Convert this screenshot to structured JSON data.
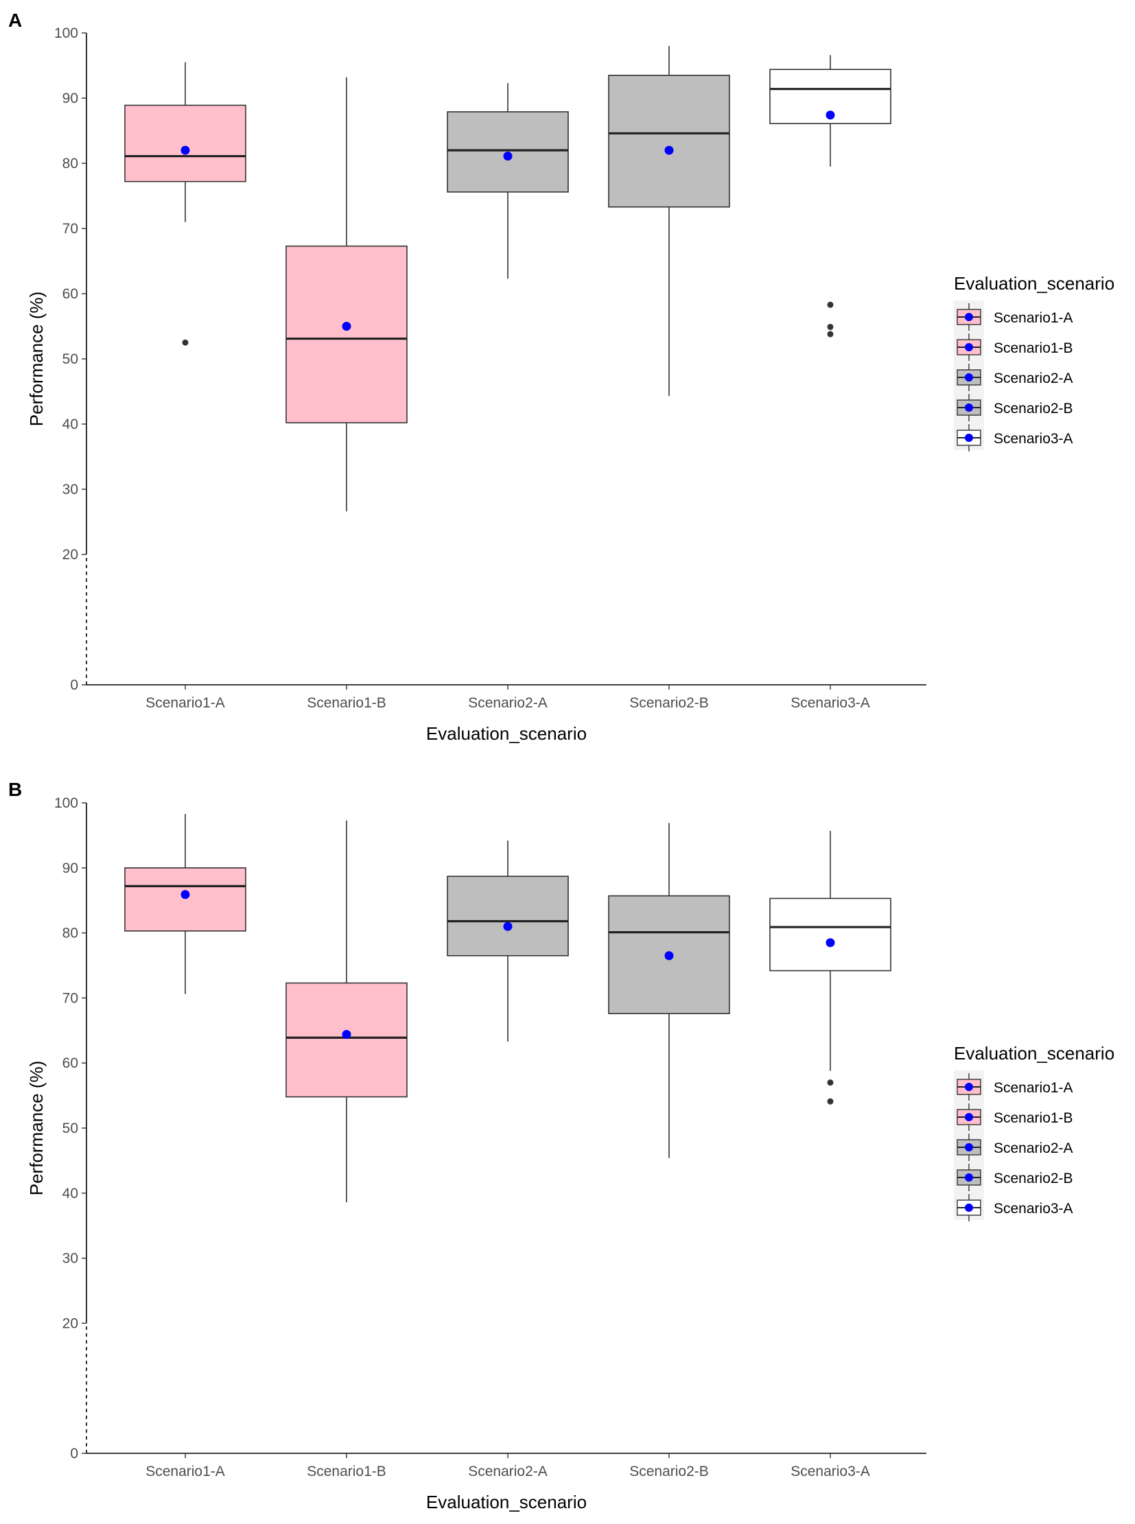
{
  "figure": {
    "panel_labels": [
      "A",
      "B"
    ]
  },
  "chart_data": [
    {
      "panel": "A",
      "type": "boxplot",
      "xlabel": "Evaluation_scenario",
      "ylabel": "Performance (%)",
      "ylim": [
        0,
        100
      ],
      "yticks": [
        0,
        20,
        30,
        40,
        50,
        60,
        70,
        80,
        90,
        100
      ],
      "ytick_labels": [
        "0",
        "20",
        "30",
        "40",
        "50",
        "60",
        "70",
        "80",
        "90",
        "100"
      ],
      "axis_break": "0-20 dashed",
      "legend": {
        "title": "Evaluation_scenario",
        "position": "right",
        "entries": [
          "Scenario1-A",
          "Scenario1-B",
          "Scenario2-A",
          "Scenario2-B",
          "Scenario3-A"
        ]
      },
      "categories": [
        "Scenario1-A",
        "Scenario1-B",
        "Scenario2-A",
        "Scenario2-B",
        "Scenario3-A"
      ],
      "colors": {
        "Scenario1-A": "#ffc0cb",
        "Scenario1-B": "#ffc0cb",
        "Scenario2-A": "#bebebe",
        "Scenario2-B": "#bebebe",
        "Scenario3-A": "#ffffff"
      },
      "mean_color": "#0000ff",
      "boxes": [
        {
          "category": "Scenario1-A",
          "whisker_low": 71,
          "q1": 77.2,
          "median": 81.1,
          "q3": 88.9,
          "whisker_high": 95.5,
          "mean": 82,
          "outliers": [
            52.5
          ]
        },
        {
          "category": "Scenario1-B",
          "whisker_low": 26.6,
          "q1": 40.2,
          "median": 53.1,
          "q3": 67.3,
          "whisker_high": 93.2,
          "mean": 55,
          "outliers": []
        },
        {
          "category": "Scenario2-A",
          "whisker_low": 62.3,
          "q1": 75.6,
          "median": 82,
          "q3": 87.9,
          "whisker_high": 92.3,
          "mean": 81.1,
          "outliers": []
        },
        {
          "category": "Scenario2-B",
          "whisker_low": 44.3,
          "q1": 73.3,
          "median": 84.6,
          "q3": 93.5,
          "whisker_high": 98,
          "mean": 82,
          "outliers": []
        },
        {
          "category": "Scenario3-A",
          "whisker_low": 79.5,
          "q1": 86.1,
          "median": 91.4,
          "q3": 94.4,
          "whisker_high": 96.6,
          "mean": 87.4,
          "outliers": [
            58.3,
            54.9,
            53.8
          ]
        }
      ]
    },
    {
      "panel": "B",
      "type": "boxplot",
      "xlabel": "Evaluation_scenario",
      "ylabel": "Performance (%)",
      "ylim": [
        0,
        100
      ],
      "yticks": [
        0,
        20,
        30,
        40,
        50,
        60,
        70,
        80,
        90,
        100
      ],
      "ytick_labels": [
        "0",
        "20",
        "30",
        "40",
        "50",
        "60",
        "70",
        "80",
        "90",
        "100"
      ],
      "axis_break": "0-20 dashed",
      "legend": {
        "title": "Evaluation_scenario",
        "position": "right",
        "entries": [
          "Scenario1-A",
          "Scenario1-B",
          "Scenario2-A",
          "Scenario2-B",
          "Scenario3-A"
        ]
      },
      "categories": [
        "Scenario1-A",
        "Scenario1-B",
        "Scenario2-A",
        "Scenario2-B",
        "Scenario3-A"
      ],
      "colors": {
        "Scenario1-A": "#ffc0cb",
        "Scenario1-B": "#ffc0cb",
        "Scenario2-A": "#bebebe",
        "Scenario2-B": "#bebebe",
        "Scenario3-A": "#ffffff"
      },
      "mean_color": "#0000ff",
      "boxes": [
        {
          "category": "Scenario1-A",
          "whisker_low": 70.6,
          "q1": 80.3,
          "median": 87.2,
          "q3": 90,
          "whisker_high": 98.3,
          "mean": 85.9,
          "outliers": []
        },
        {
          "category": "Scenario1-B",
          "whisker_low": 38.6,
          "q1": 54.8,
          "median": 63.9,
          "q3": 72.3,
          "whisker_high": 97.3,
          "mean": 64.4,
          "outliers": []
        },
        {
          "category": "Scenario2-A",
          "whisker_low": 63.3,
          "q1": 76.5,
          "median": 81.8,
          "q3": 88.7,
          "whisker_high": 94.2,
          "mean": 81,
          "outliers": []
        },
        {
          "category": "Scenario2-B",
          "whisker_low": 45.4,
          "q1": 67.6,
          "median": 80.1,
          "q3": 85.7,
          "whisker_high": 96.9,
          "mean": 76.5,
          "outliers": []
        },
        {
          "category": "Scenario3-A",
          "whisker_low": 58.8,
          "q1": 74.2,
          "median": 80.9,
          "q3": 85.3,
          "whisker_high": 95.7,
          "mean": 78.5,
          "outliers": [
            57,
            54.1
          ]
        }
      ]
    }
  ]
}
